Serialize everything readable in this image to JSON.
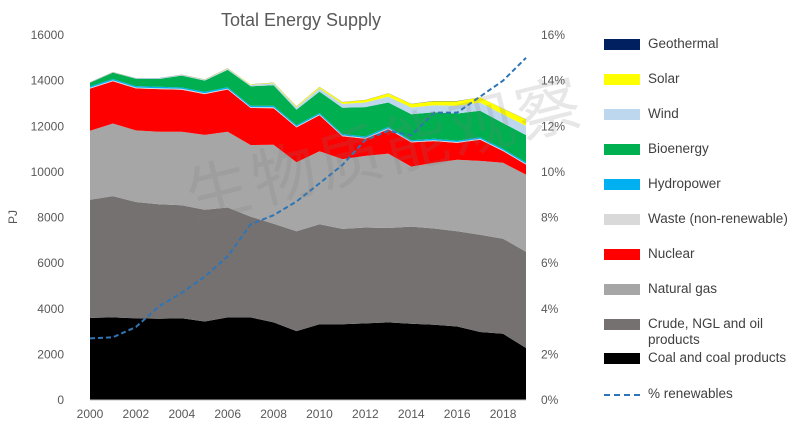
{
  "watermark": "生物质能观察",
  "chart_data": {
    "type": "area",
    "title": "Total Energy Supply",
    "ylabel": "PJ",
    "ylabel_right": "",
    "x": [
      2000,
      2001,
      2002,
      2003,
      2004,
      2005,
      2006,
      2007,
      2008,
      2009,
      2010,
      2011,
      2012,
      2013,
      2014,
      2015,
      2016,
      2017,
      2018,
      2019
    ],
    "x_ticks": [
      "2000",
      "2002",
      "2004",
      "2006",
      "2008",
      "2010",
      "2012",
      "2014",
      "2016",
      "2018"
    ],
    "ylim": [
      0,
      16000
    ],
    "y_ticks": [
      "0",
      "2000",
      "4000",
      "6000",
      "8000",
      "10000",
      "12000",
      "14000",
      "16000"
    ],
    "y2lim": [
      0,
      16
    ],
    "y2_ticks": [
      "0%",
      "2%",
      "4%",
      "6%",
      "8%",
      "10%",
      "12%",
      "14%",
      "16%"
    ],
    "grid": false,
    "legend_position": "right",
    "series": [
      {
        "name": "Coal and coal products",
        "color": "#000000",
        "values": [
          3600,
          3620,
          3580,
          3560,
          3580,
          3440,
          3620,
          3620,
          3400,
          3020,
          3320,
          3320,
          3360,
          3400,
          3340,
          3300,
          3220,
          2980,
          2900,
          2280
        ]
      },
      {
        "name": "Crude, NGL and oil products",
        "color": "#767171",
        "values": [
          5180,
          5320,
          5100,
          5020,
          4960,
          4900,
          4820,
          4420,
          4330,
          4380,
          4380,
          4180,
          4200,
          4140,
          4260,
          4220,
          4180,
          4260,
          4170,
          4220
        ]
      },
      {
        "name": "Natural gas",
        "color": "#A6A6A6",
        "values": [
          3020,
          3180,
          3140,
          3180,
          3220,
          3280,
          3320,
          3140,
          3460,
          3020,
          3200,
          3060,
          3140,
          3260,
          2630,
          2880,
          3130,
          3240,
          3330,
          3380
        ]
      },
      {
        "name": "Nuclear",
        "color": "#FF0000",
        "values": [
          1850,
          1850,
          1840,
          1870,
          1840,
          1790,
          1850,
          1620,
          1600,
          1530,
          1580,
          1000,
          750,
          1070,
          1060,
          950,
          740,
          930,
          510,
          440
        ]
      },
      {
        "name": "Waste (non-renewable)",
        "color": "#D9D9D9",
        "values": [
          40,
          40,
          40,
          40,
          40,
          40,
          40,
          40,
          40,
          40,
          40,
          40,
          40,
          40,
          40,
          40,
          40,
          40,
          40,
          40
        ]
      },
      {
        "name": "Hydropower",
        "color": "#00B0F0",
        "values": [
          60,
          60,
          60,
          60,
          60,
          60,
          60,
          60,
          60,
          60,
          60,
          60,
          60,
          60,
          60,
          60,
          60,
          60,
          60,
          60
        ]
      },
      {
        "name": "Bioenergy",
        "color": "#00B050",
        "values": [
          150,
          280,
          320,
          340,
          520,
          490,
          760,
          850,
          910,
          680,
          940,
          1150,
          1290,
          1070,
          1140,
          1160,
          1190,
          1170,
          1130,
          1190
        ]
      },
      {
        "name": "Wind",
        "color": "#BDD7EE",
        "values": [
          10,
          20,
          20,
          30,
          30,
          40,
          50,
          70,
          80,
          110,
          140,
          170,
          200,
          260,
          290,
          310,
          340,
          360,
          380,
          410
        ]
      },
      {
        "name": "Solar",
        "color": "#FFFF00",
        "values": [
          5,
          5,
          5,
          5,
          10,
          10,
          15,
          20,
          30,
          40,
          60,
          80,
          110,
          140,
          160,
          180,
          200,
          230,
          250,
          280
        ]
      },
      {
        "name": "Geothermal",
        "color": "#002060",
        "values": [
          5,
          5,
          5,
          5,
          5,
          5,
          5,
          5,
          5,
          5,
          5,
          5,
          5,
          5,
          5,
          5,
          5,
          5,
          5,
          5
        ]
      }
    ],
    "line_series": {
      "name": "% renewables",
      "color": "#2E75B6",
      "axis": "right",
      "values": [
        2.7,
        2.75,
        3.2,
        4.1,
        4.7,
        5.4,
        6.3,
        7.7,
        8.1,
        8.7,
        9.5,
        10.3,
        11.4,
        11.8,
        11.6,
        12.6,
        12.6,
        13.3,
        14.0,
        15.0
      ]
    },
    "legend_order": [
      "Geothermal",
      "Solar",
      "Wind",
      "Bioenergy",
      "Hydropower",
      "Waste (non-renewable)",
      "Nuclear",
      "Natural gas",
      "Crude, NGL and oil products",
      "Coal and coal products",
      "% renewables"
    ]
  }
}
